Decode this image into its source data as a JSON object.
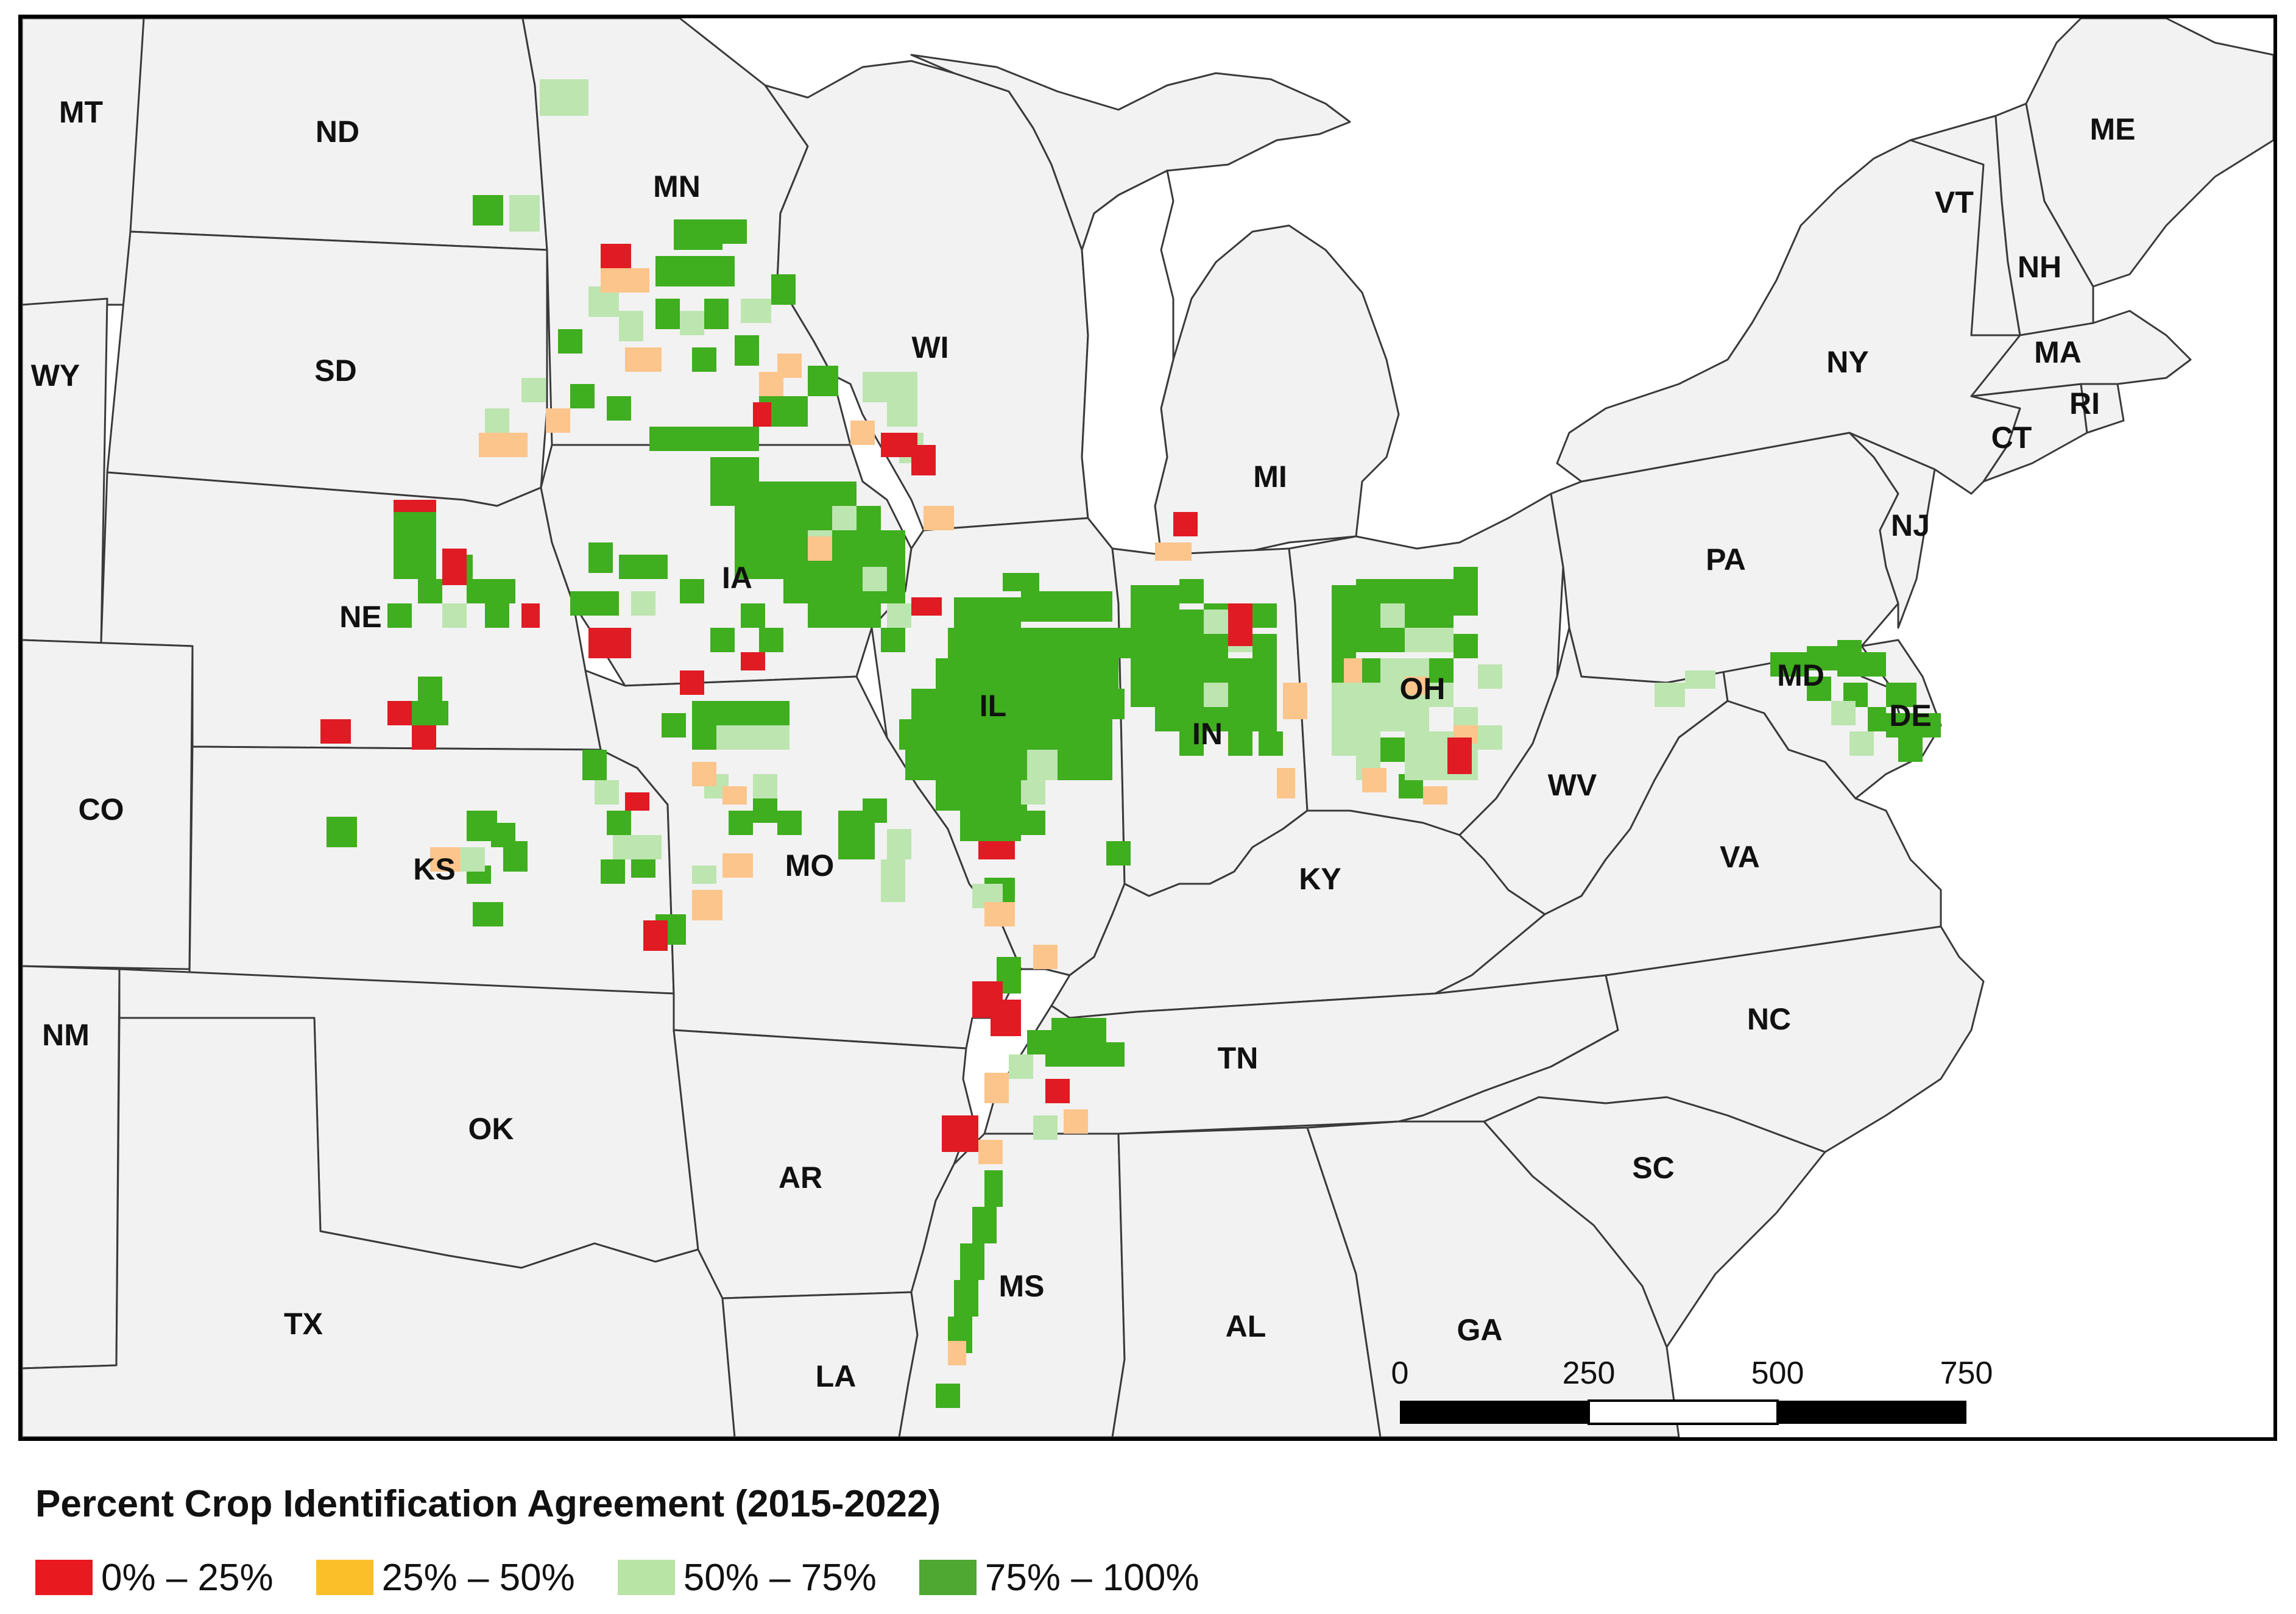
{
  "map": {
    "states": [
      {
        "id": "MT",
        "label": "MT"
      },
      {
        "id": "ND",
        "label": "ND"
      },
      {
        "id": "SD",
        "label": "SD"
      },
      {
        "id": "WY",
        "label": "WY"
      },
      {
        "id": "NE",
        "label": "NE"
      },
      {
        "id": "CO",
        "label": "CO"
      },
      {
        "id": "KS",
        "label": "KS"
      },
      {
        "id": "NM",
        "label": "NM"
      },
      {
        "id": "OK",
        "label": "OK"
      },
      {
        "id": "TX",
        "label": "TX"
      },
      {
        "id": "MN",
        "label": "MN"
      },
      {
        "id": "IA",
        "label": "IA"
      },
      {
        "id": "MO",
        "label": "MO"
      },
      {
        "id": "AR",
        "label": "AR"
      },
      {
        "id": "LA",
        "label": "LA"
      },
      {
        "id": "WI",
        "label": "WI"
      },
      {
        "id": "IL",
        "label": "IL"
      },
      {
        "id": "MS",
        "label": "MS"
      },
      {
        "id": "MI",
        "label": "MI"
      },
      {
        "id": "IN",
        "label": "IN"
      },
      {
        "id": "KY",
        "label": "KY"
      },
      {
        "id": "TN",
        "label": "TN"
      },
      {
        "id": "AL",
        "label": "AL"
      },
      {
        "id": "OH",
        "label": "OH"
      },
      {
        "id": "WV",
        "label": "WV"
      },
      {
        "id": "VA",
        "label": "VA"
      },
      {
        "id": "NC",
        "label": "NC"
      },
      {
        "id": "SC",
        "label": "SC"
      },
      {
        "id": "GA",
        "label": "GA"
      },
      {
        "id": "PA",
        "label": "PA"
      },
      {
        "id": "NY",
        "label": "NY"
      },
      {
        "id": "MD",
        "label": "MD"
      },
      {
        "id": "DE",
        "label": "DE"
      },
      {
        "id": "NJ",
        "label": "NJ"
      },
      {
        "id": "CT",
        "label": "CT"
      },
      {
        "id": "RI",
        "label": "RI"
      },
      {
        "id": "MA",
        "label": "MA"
      },
      {
        "id": "VT",
        "label": "VT"
      },
      {
        "id": "NH",
        "label": "NH"
      },
      {
        "id": "ME",
        "label": "ME"
      }
    ],
    "scale_bar": {
      "ticks": [
        "0",
        "250",
        "500",
        "750"
      ]
    }
  },
  "legend": {
    "title": "Percent Crop Identification Agreement (2015-2022)",
    "classes": [
      {
        "label": "0% – 25%",
        "color": "#e8191f"
      },
      {
        "label": "25% – 50%",
        "color": "#fbbf2a"
      },
      {
        "label": "50% – 75%",
        "color": "#b8e4a6"
      },
      {
        "label": "75% – 100%",
        "color": "#4fa832"
      }
    ]
  },
  "colors": {
    "state_fill": "#f2f2f2",
    "state_border": "#3a3a3a",
    "county_agreement_high": "#3fae1f",
    "county_agreement_mid": "#bde5b0",
    "county_agreement_lowmid": "#fbc58c",
    "county_agreement_low": "#e01b24"
  }
}
